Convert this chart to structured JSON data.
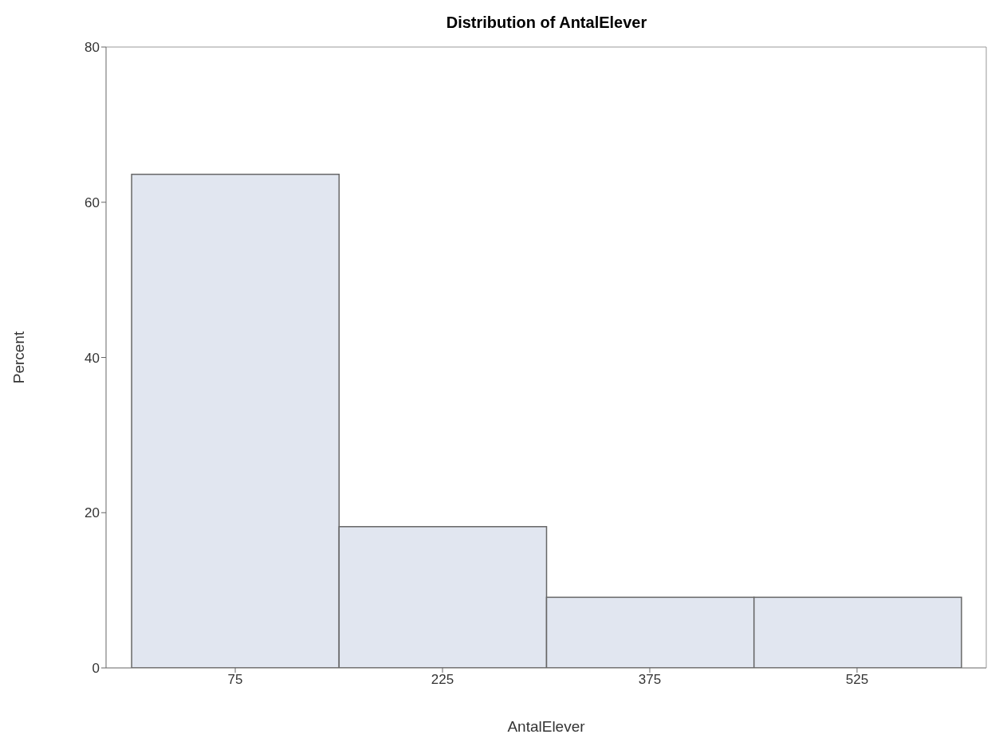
{
  "chart_data": {
    "type": "histogram",
    "title": "Distribution of AntalElever",
    "xlabel": "AntalElever",
    "ylabel": "Percent",
    "bins": [
      0,
      150,
      300,
      450,
      600
    ],
    "values": [
      63.6,
      18.2,
      9.1,
      9.1
    ],
    "color": "#e1e6f0",
    "xlim": [
      -18.5,
      618.5
    ],
    "xticks": [
      75,
      225,
      375,
      525
    ],
    "ylim": [
      0,
      80
    ],
    "yticks": [
      0,
      20,
      40,
      60,
      80
    ]
  }
}
